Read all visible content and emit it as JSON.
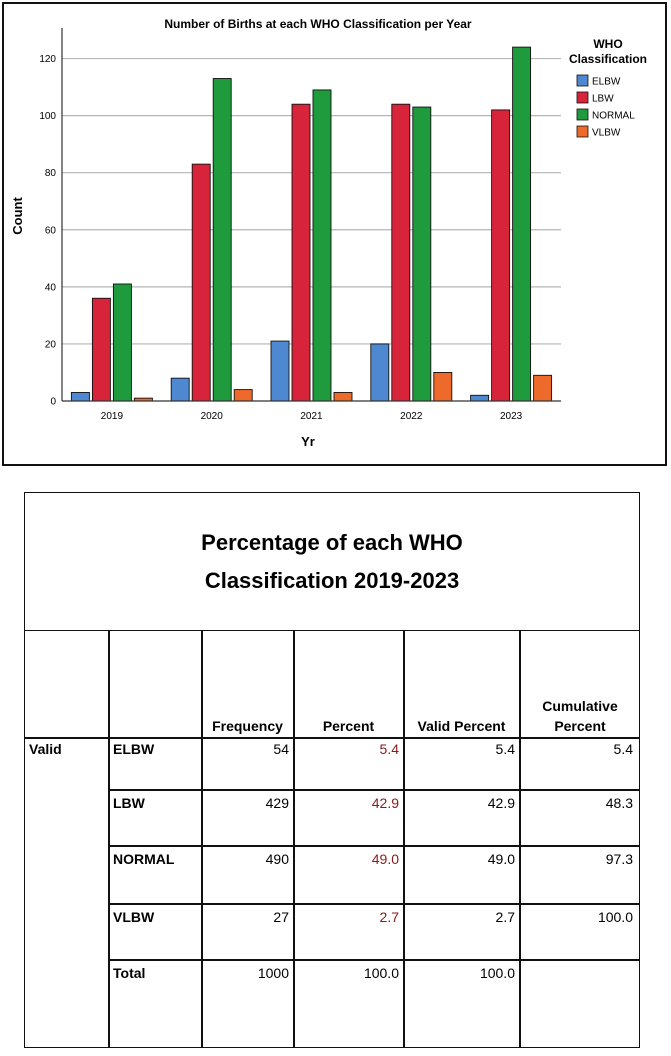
{
  "chart_data": {
    "type": "bar",
    "title": "Number of Births at each WHO Classification per Year",
    "xlabel": "Yr",
    "ylabel": "Count",
    "categories": [
      "2019",
      "2020",
      "2021",
      "2022",
      "2023"
    ],
    "ylim": [
      0,
      130
    ],
    "yticks": [
      0,
      20,
      40,
      60,
      80,
      100,
      120
    ],
    "grid": true,
    "legend_title": "WHO Classification",
    "legend_title_lines": [
      "WHO",
      "Classification"
    ],
    "legend_position": "right",
    "series": [
      {
        "name": "ELBW",
        "color": "#4d88d0",
        "values": [
          3,
          8,
          21,
          20,
          2
        ]
      },
      {
        "name": "LBW",
        "color": "#d8243a",
        "values": [
          36,
          83,
          104,
          104,
          102
        ]
      },
      {
        "name": "NORMAL",
        "color": "#1f9a3c",
        "values": [
          41,
          113,
          109,
          103,
          124
        ]
      },
      {
        "name": "VLBW",
        "color": "#ee6a2a",
        "values": [
          1,
          4,
          3,
          10,
          9
        ]
      }
    ]
  },
  "table": {
    "title_line1": "Percentage of each WHO",
    "title_line2": "Classification 2019-2023",
    "headers": {
      "frequency": "Frequency",
      "percent": "Percent",
      "valid_percent": "Valid Percent",
      "cumulative_line1": "Cumulative",
      "cumulative_line2": "Percent"
    },
    "group_label": "Valid",
    "rows": [
      {
        "label": "ELBW",
        "frequency": "54",
        "percent": "5.4",
        "valid_percent": "5.4",
        "cumulative": "5.4"
      },
      {
        "label": "LBW",
        "frequency": "429",
        "percent": "42.9",
        "valid_percent": "42.9",
        "cumulative": "48.3"
      },
      {
        "label": "NORMAL",
        "frequency": "490",
        "percent": "49.0",
        "valid_percent": "49.0",
        "cumulative": "97.3"
      },
      {
        "label": "VLBW",
        "frequency": "27",
        "percent": "2.7",
        "valid_percent": "2.7",
        "cumulative": "100.0"
      },
      {
        "label": "Total",
        "frequency": "1000",
        "percent": "100.0",
        "valid_percent": "100.0",
        "cumulative": ""
      }
    ]
  }
}
